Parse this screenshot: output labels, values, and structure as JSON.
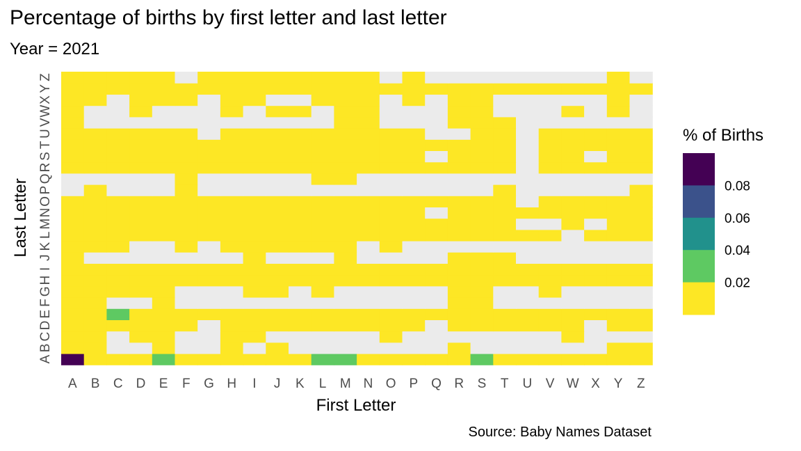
{
  "chart_data": {
    "type": "heatmap",
    "title": "Percentage of births by first letter and last letter",
    "subtitle": "Year = 2021",
    "xlabel": "First Letter",
    "ylabel": "Last Letter",
    "caption": "Source: Baby Names Dataset",
    "x": [
      "A",
      "B",
      "C",
      "D",
      "E",
      "F",
      "G",
      "H",
      "I",
      "J",
      "K",
      "L",
      "M",
      "N",
      "O",
      "P",
      "Q",
      "R",
      "S",
      "T",
      "U",
      "V",
      "W",
      "X",
      "Y",
      "Z"
    ],
    "y": [
      "A",
      "B",
      "C",
      "D",
      "E",
      "F",
      "G",
      "H",
      "I",
      "J",
      "K",
      "L",
      "M",
      "N",
      "O",
      "P",
      "Q",
      "R",
      "S",
      "T",
      "U",
      "V",
      "W",
      "X",
      "Y",
      "Z"
    ],
    "grid": [
      "PPGPGNNPPPPPGGPPPPPGPPPPPP",
      "PP..P..P.P..............PP",
      "PP.PP..PP.....P.......P...",
      "PPPPPP.PPPPPPPPP.PPPPPP.PP",
      "PPGPP.........P....PP.....",
      "PP...P..PPPP..PPPPPP.PP.PP",
      "PPPPPP...PP.PPP...PP..P...",
      "PPPPPPPPPPPPPPPPPPPPPPPPPP",
      "PPPPPPPPPPPPPPPPPPPPPPPPPP",
      "PP.......P...P.....PPP....",
      "PPPP..P.PPPP.PP.PPPPP.....",
      "PPPPPPPPPPPPPPPPPPPPPPP.PPP",
      "PPPPPPPPPPPPPPPPPPPPPPP..P.PP",
      "PPPPPPPPPPPPPPPPPPPPP.PPPPPP",
      "PP.....................PP.P",
      "..........PPPP..........",
      "PPPPPPPPPPPPPPPPPPPPP.PPPPP",
      "PPPPPPPPPPPPPPPPP.PPPP.PP.PP",
      "PPPPPPPPPPPPPPPPPPPP.PPPPP",
      "PPPPPP.PPPPPPPPPP..PP....PP",
      "P.........P.PP..P......P..",
      "P..P.....PP..PP..P....P.PP",
      "PPP.P..P.....PP..P.....P..",
      "PPPPPPPPPPPPPPPPPPPPPPPPPP",
      "PPPPPPPPPPPPPPPPPPPPPPPPPP",
      "PPPPPPPPPPPPPPPPPP........"
    ],
    "cell_values": [
      [
        0.098,
        0.01,
        0.01,
        0.01,
        0.03,
        0.01,
        0.01,
        0.01,
        0.01,
        0.01,
        0.01,
        0.03,
        0.03,
        0.01,
        0.01,
        0.01,
        0.01,
        0.01,
        0.03,
        0.01,
        0.01,
        0.01,
        0.01,
        0.01,
        0.01,
        0.01
      ],
      [
        0.01,
        0.01,
        null,
        null,
        0.01,
        null,
        null,
        0.01,
        null,
        0.01,
        null,
        null,
        null,
        null,
        null,
        null,
        null,
        0.01,
        null,
        null,
        null,
        null,
        null,
        null,
        0.01,
        0.01
      ],
      [
        0.01,
        0.01,
        null,
        0.01,
        0.01,
        null,
        null,
        0.01,
        0.01,
        null,
        null,
        null,
        null,
        null,
        0.01,
        null,
        null,
        null,
        null,
        null,
        null,
        null,
        0.01,
        null,
        null,
        null
      ],
      [
        0.01,
        0.01,
        0.01,
        0.01,
        0.01,
        0.01,
        null,
        0.01,
        0.01,
        0.01,
        0.01,
        0.01,
        0.01,
        0.01,
        0.01,
        0.01,
        null,
        0.01,
        0.01,
        0.01,
        0.01,
        0.01,
        0.01,
        null,
        0.01,
        0.01
      ],
      [
        0.01,
        0.01,
        0.03,
        0.01,
        0.01,
        0.01,
        0.01,
        0.01,
        0.01,
        0.01,
        0.01,
        0.01,
        0.01,
        0.01,
        0.01,
        0.01,
        0.01,
        0.01,
        0.01,
        0.01,
        0.01,
        0.01,
        0.01,
        0.01,
        0.01,
        0.01
      ],
      [
        0.01,
        0.01,
        null,
        null,
        0.01,
        null,
        null,
        null,
        null,
        null,
        null,
        null,
        null,
        null,
        null,
        null,
        null,
        0.01,
        0.01,
        null,
        null,
        null,
        null,
        null,
        null,
        null
      ],
      [
        0.01,
        0.01,
        0.01,
        0.01,
        0.01,
        null,
        null,
        null,
        0.01,
        0.01,
        null,
        0.01,
        null,
        null,
        null,
        null,
        null,
        0.01,
        0.01,
        null,
        null,
        0.01,
        null,
        null,
        null,
        null
      ],
      [
        0.01,
        0.01,
        0.01,
        0.01,
        0.01,
        0.01,
        0.01,
        0.01,
        0.01,
        0.01,
        0.01,
        0.01,
        0.01,
        0.01,
        0.01,
        0.01,
        0.01,
        0.01,
        0.01,
        0.01,
        0.01,
        0.01,
        0.01,
        0.01,
        0.01,
        0.01
      ],
      [
        0.01,
        0.01,
        0.01,
        0.01,
        0.01,
        0.01,
        0.01,
        0.01,
        0.01,
        0.01,
        0.01,
        0.01,
        0.01,
        0.01,
        0.01,
        0.01,
        0.01,
        0.01,
        0.01,
        0.01,
        0.01,
        0.01,
        0.01,
        0.01,
        0.01,
        0.01
      ],
      [
        0.01,
        null,
        null,
        null,
        null,
        null,
        null,
        null,
        0.01,
        null,
        null,
        null,
        0.01,
        null,
        null,
        null,
        null,
        0.01,
        0.01,
        0.01,
        null,
        null,
        null,
        null,
        null,
        null
      ],
      [
        0.01,
        0.01,
        0.01,
        null,
        null,
        0.01,
        null,
        0.01,
        0.01,
        0.01,
        0.01,
        0.01,
        0.01,
        null,
        0.01,
        null,
        null,
        null,
        null,
        null,
        null,
        null,
        null,
        null,
        null,
        null
      ],
      [
        0.01,
        0.01,
        0.01,
        0.01,
        0.01,
        0.01,
        0.01,
        0.01,
        0.01,
        0.01,
        0.01,
        0.01,
        0.01,
        0.01,
        0.01,
        0.01,
        0.01,
        0.01,
        0.01,
        0.01,
        0.01,
        0.01,
        null,
        0.01,
        0.01,
        0.01
      ],
      [
        0.01,
        0.01,
        0.01,
        0.01,
        0.01,
        0.01,
        0.01,
        0.01,
        0.01,
        0.01,
        0.01,
        0.01,
        0.01,
        0.01,
        0.01,
        0.01,
        0.01,
        0.01,
        0.01,
        0.01,
        null,
        null,
        0.01,
        null,
        0.01,
        0.01
      ],
      [
        0.01,
        0.01,
        0.01,
        0.01,
        0.01,
        0.01,
        0.01,
        0.01,
        0.01,
        0.01,
        0.01,
        0.01,
        0.01,
        0.01,
        0.01,
        0.01,
        null,
        0.01,
        0.01,
        0.01,
        0.01,
        0.01,
        0.01,
        0.01,
        0.01,
        0.01
      ],
      [
        0.01,
        0.01,
        0.01,
        0.01,
        0.01,
        0.01,
        0.01,
        0.01,
        0.01,
        0.01,
        0.01,
        0.01,
        0.01,
        0.01,
        0.01,
        0.01,
        0.01,
        0.01,
        0.01,
        0.01,
        null,
        0.01,
        0.01,
        0.01,
        0.01,
        0.01
      ],
      [
        null,
        0.01,
        null,
        null,
        null,
        0.01,
        null,
        null,
        null,
        null,
        null,
        null,
        null,
        null,
        null,
        null,
        null,
        null,
        null,
        0.01,
        null,
        null,
        null,
        null,
        null,
        0.01
      ],
      [
        null,
        null,
        null,
        null,
        null,
        0.01,
        null,
        null,
        null,
        null,
        null,
        0.01,
        0.01,
        null,
        null,
        null,
        null,
        null,
        null,
        null,
        null,
        null,
        null,
        null,
        null,
        null
      ],
      [
        0.01,
        0.01,
        0.01,
        0.01,
        0.01,
        0.01,
        0.01,
        0.01,
        0.01,
        0.01,
        0.01,
        0.01,
        0.01,
        0.01,
        0.01,
        0.01,
        0.01,
        0.01,
        0.01,
        0.01,
        null,
        0.01,
        0.01,
        0.01,
        0.01,
        0.01
      ],
      [
        0.01,
        0.01,
        0.01,
        0.01,
        0.01,
        0.01,
        0.01,
        0.01,
        0.01,
        0.01,
        0.01,
        0.01,
        0.01,
        0.01,
        0.01,
        0.01,
        null,
        0.01,
        0.01,
        0.01,
        null,
        0.01,
        0.01,
        null,
        0.01,
        0.01
      ],
      [
        0.01,
        0.01,
        0.01,
        0.01,
        0.01,
        0.01,
        0.01,
        0.01,
        0.01,
        0.01,
        0.01,
        0.01,
        0.01,
        0.01,
        0.01,
        0.01,
        0.01,
        0.01,
        0.01,
        0.01,
        null,
        0.01,
        0.01,
        0.01,
        0.01,
        0.01
      ],
      [
        0.01,
        0.01,
        0.01,
        0.01,
        0.01,
        0.01,
        null,
        0.01,
        0.01,
        0.01,
        0.01,
        0.01,
        0.01,
        0.01,
        0.01,
        0.01,
        null,
        null,
        0.01,
        0.01,
        null,
        0.01,
        0.01,
        0.01,
        0.01,
        0.01
      ],
      [
        0.01,
        null,
        null,
        null,
        null,
        null,
        null,
        null,
        null,
        null,
        null,
        null,
        0.01,
        0.01,
        null,
        null,
        null,
        0.01,
        0.01,
        0.01,
        null,
        null,
        null,
        null,
        null,
        null
      ],
      [
        0.01,
        null,
        null,
        0.01,
        null,
        null,
        null,
        0.01,
        null,
        0.01,
        0.01,
        null,
        0.01,
        0.01,
        null,
        null,
        null,
        0.01,
        0.01,
        null,
        null,
        null,
        0.01,
        null,
        0.01,
        null
      ],
      [
        0.01,
        0.01,
        null,
        0.01,
        0.01,
        0.01,
        null,
        0.01,
        0.01,
        null,
        null,
        0.01,
        0.01,
        0.01,
        null,
        0.01,
        null,
        0.01,
        0.01,
        null,
        null,
        null,
        null,
        null,
        0.01,
        null
      ],
      [
        0.01,
        0.01,
        0.01,
        0.01,
        0.01,
        0.01,
        0.01,
        0.01,
        0.01,
        0.01,
        0.01,
        0.01,
        0.01,
        0.01,
        0.01,
        0.01,
        0.01,
        0.01,
        0.01,
        0.01,
        0.01,
        0.01,
        0.01,
        0.01,
        0.01,
        0.01
      ],
      [
        0.01,
        0.01,
        0.01,
        0.01,
        0.01,
        null,
        0.01,
        0.01,
        0.01,
        0.01,
        0.01,
        0.01,
        0.01,
        0.01,
        null,
        0.01,
        null,
        null,
        null,
        null,
        null,
        null,
        null,
        null,
        0.01,
        null
      ]
    ],
    "legend": {
      "title": "% of Births",
      "breaks": [
        "0.08",
        "0.06",
        "0.04",
        "0.02"
      ],
      "colors": [
        "#fde725",
        "#5ec962",
        "#21918c",
        "#3b528b",
        "#440154"
      ],
      "na_color": "#ebebeb",
      "position": "right"
    }
  }
}
